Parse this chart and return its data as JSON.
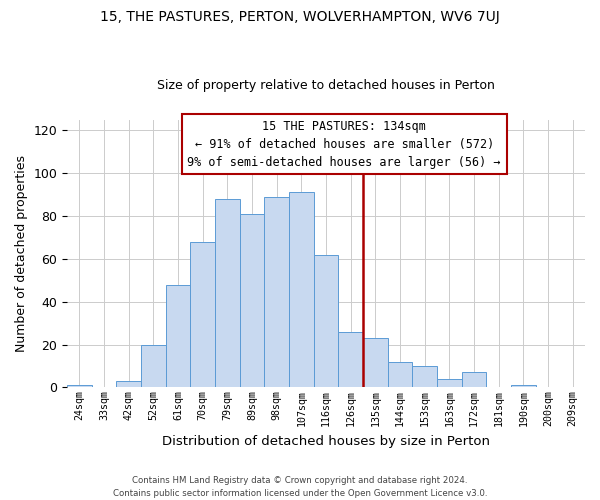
{
  "title": "15, THE PASTURES, PERTON, WOLVERHAMPTON, WV6 7UJ",
  "subtitle": "Size of property relative to detached houses in Perton",
  "xlabel": "Distribution of detached houses by size in Perton",
  "ylabel": "Number of detached properties",
  "bar_labels": [
    "24sqm",
    "33sqm",
    "42sqm",
    "52sqm",
    "61sqm",
    "70sqm",
    "79sqm",
    "89sqm",
    "98sqm",
    "107sqm",
    "116sqm",
    "126sqm",
    "135sqm",
    "144sqm",
    "153sqm",
    "163sqm",
    "172sqm",
    "181sqm",
    "190sqm",
    "200sqm",
    "209sqm"
  ],
  "bar_values": [
    1,
    0,
    3,
    20,
    48,
    68,
    88,
    81,
    89,
    91,
    62,
    26,
    23,
    12,
    10,
    4,
    7,
    0,
    1,
    0,
    0
  ],
  "bar_color": "#c8d9f0",
  "bar_edge_color": "#5b9bd5",
  "marker_x_label": "135sqm",
  "marker_color": "#aa0000",
  "ylim": [
    0,
    125
  ],
  "yticks": [
    0,
    20,
    40,
    60,
    80,
    100,
    120
  ],
  "annotation_title": "15 THE PASTURES: 134sqm",
  "annotation_line1": "← 91% of detached houses are smaller (572)",
  "annotation_line2": "9% of semi-detached houses are larger (56) →",
  "footer_line1": "Contains HM Land Registry data © Crown copyright and database right 2024.",
  "footer_line2": "Contains public sector information licensed under the Open Government Licence v3.0.",
  "bg_color": "#ffffff",
  "grid_color": "#cccccc"
}
